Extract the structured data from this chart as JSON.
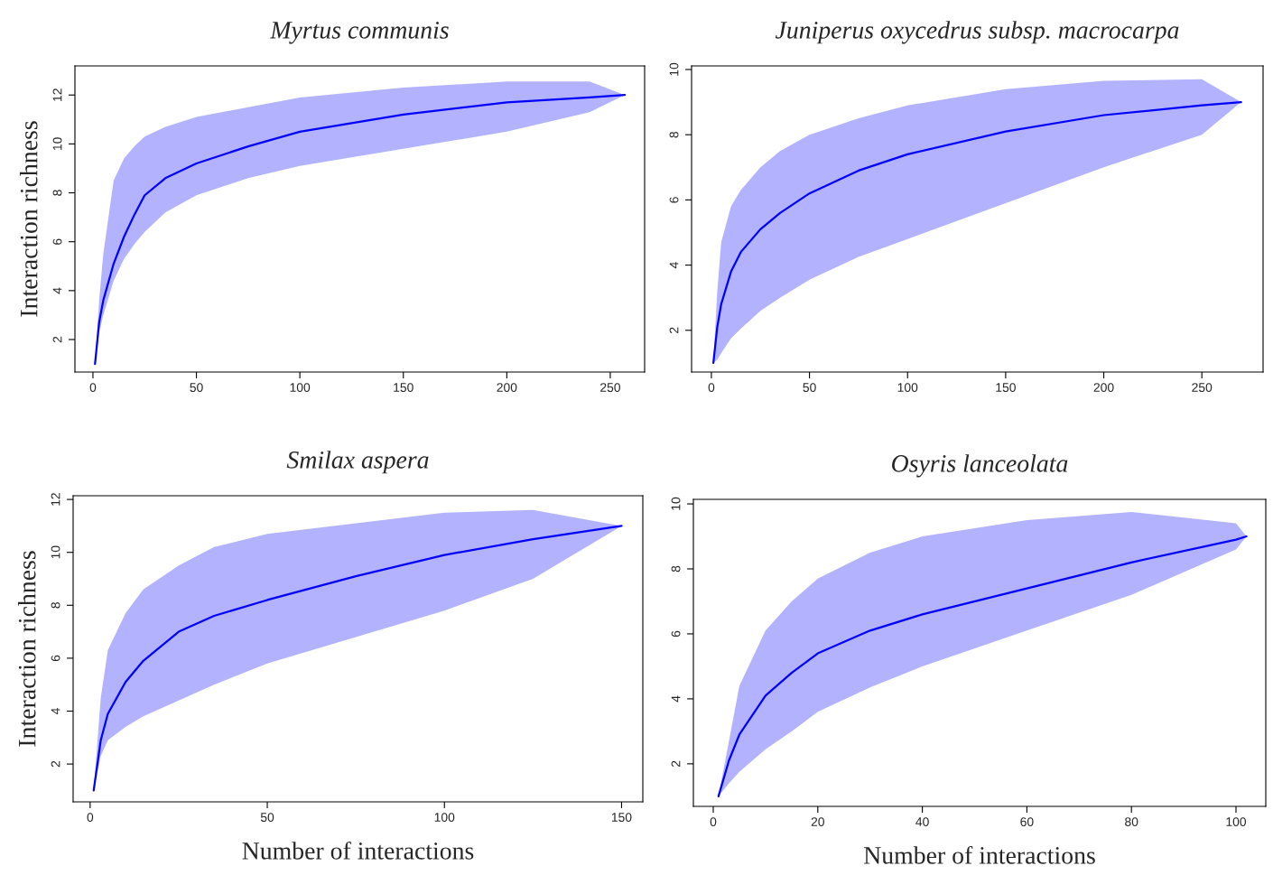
{
  "chart_data": [
    {
      "type": "line",
      "title": "Myrtus communis",
      "ylabel": "Interaction richness",
      "xlim": [
        -8.7,
        266.6
      ],
      "ylim": [
        0.67,
        13.19
      ],
      "xticks": [
        0,
        50,
        100,
        150,
        200,
        250
      ],
      "yticks": [
        2,
        4,
        6,
        8,
        10,
        12
      ],
      "grid": false,
      "legend": false,
      "series": [
        {
          "color": "#0000ff",
          "x": [
            1,
            3,
            5,
            10,
            15,
            20,
            25,
            35,
            50,
            75,
            100,
            150,
            200,
            240,
            257
          ],
          "values": [
            1,
            2.7,
            3.6,
            5.1,
            6.2,
            7.1,
            7.9,
            8.6,
            9.2,
            9.9,
            10.5,
            11.2,
            11.7,
            11.9,
            12
          ],
          "lower": [
            1,
            2.3,
            3.0,
            4.4,
            5.3,
            5.9,
            6.4,
            7.2,
            7.9,
            8.6,
            9.1,
            9.8,
            10.5,
            11.3,
            12
          ],
          "upper": [
            1,
            3.6,
            5.5,
            8.5,
            9.4,
            9.9,
            10.3,
            10.7,
            11.1,
            11.5,
            11.9,
            12.3,
            12.55,
            12.55,
            12
          ]
        }
      ]
    },
    {
      "type": "line",
      "title": "Juniperus oxycedrus subsp. macrocarpa",
      "xlim": [
        -10.1,
        281.2
      ],
      "ylim": [
        0.72,
        10.11
      ],
      "xticks": [
        0,
        50,
        100,
        150,
        200,
        250
      ],
      "yticks": [
        2,
        4,
        6,
        8,
        10
      ],
      "grid": false,
      "legend": false,
      "series": [
        {
          "color": "#0000ff",
          "x": [
            1,
            3,
            5,
            10,
            15,
            25,
            35,
            50,
            75,
            100,
            150,
            200,
            250,
            270
          ],
          "values": [
            1,
            2.1,
            2.8,
            3.8,
            4.4,
            5.1,
            5.6,
            6.2,
            6.9,
            7.4,
            8.1,
            8.6,
            8.9,
            9
          ],
          "lower": [
            1,
            1.1,
            1.3,
            1.75,
            2.05,
            2.6,
            3.0,
            3.55,
            4.25,
            4.8,
            5.9,
            7.0,
            8.0,
            9
          ],
          "upper": [
            1,
            3.2,
            4.7,
            5.8,
            6.3,
            7.0,
            7.5,
            8.0,
            8.5,
            8.9,
            9.4,
            9.65,
            9.7,
            9
          ]
        }
      ]
    },
    {
      "type": "line",
      "title": "Smilax aspera",
      "ylabel": "Interaction richness",
      "xlabel": "Number of interactions",
      "xlim": [
        -4.8,
        156.0
      ],
      "ylim": [
        0.57,
        12.14
      ],
      "xticks": [
        0,
        50,
        100,
        150
      ],
      "yticks": [
        2,
        4,
        6,
        8,
        10,
        12
      ],
      "grid": false,
      "legend": false,
      "series": [
        {
          "color": "#0000ff",
          "x": [
            1,
            3,
            5,
            10,
            15,
            25,
            35,
            50,
            75,
            100,
            125,
            150
          ],
          "values": [
            1,
            2.9,
            3.9,
            5.1,
            5.9,
            7.0,
            7.6,
            8.2,
            9.1,
            9.9,
            10.5,
            11
          ],
          "lower": [
            1,
            2.3,
            2.9,
            3.4,
            3.8,
            4.4,
            5.0,
            5.8,
            6.8,
            7.8,
            9.0,
            11
          ],
          "upper": [
            1,
            4.5,
            6.3,
            7.7,
            8.6,
            9.5,
            10.2,
            10.7,
            11.1,
            11.5,
            11.6,
            11
          ]
        }
      ]
    },
    {
      "type": "line",
      "title": "Osyris lanceolata",
      "xlabel": "Number of interactions",
      "xlim": [
        -3.8,
        105.7
      ],
      "ylim": [
        0.69,
        10.14
      ],
      "xticks": [
        0,
        20,
        40,
        60,
        80,
        100
      ],
      "yticks": [
        2,
        4,
        6,
        8,
        10
      ],
      "grid": false,
      "legend": false,
      "series": [
        {
          "color": "#0000ff",
          "x": [
            1,
            3,
            5,
            10,
            15,
            20,
            30,
            40,
            60,
            80,
            100,
            102
          ],
          "values": [
            1,
            2.1,
            2.9,
            4.1,
            4.8,
            5.4,
            6.1,
            6.6,
            7.4,
            8.2,
            8.9,
            9
          ],
          "lower": [
            1,
            1.4,
            1.75,
            2.45,
            3.0,
            3.6,
            4.35,
            5.0,
            6.1,
            7.2,
            8.6,
            9
          ],
          "upper": [
            1,
            2.7,
            4.4,
            6.1,
            7.0,
            7.7,
            8.5,
            9.0,
            9.5,
            9.75,
            9.4,
            9
          ]
        }
      ]
    }
  ]
}
